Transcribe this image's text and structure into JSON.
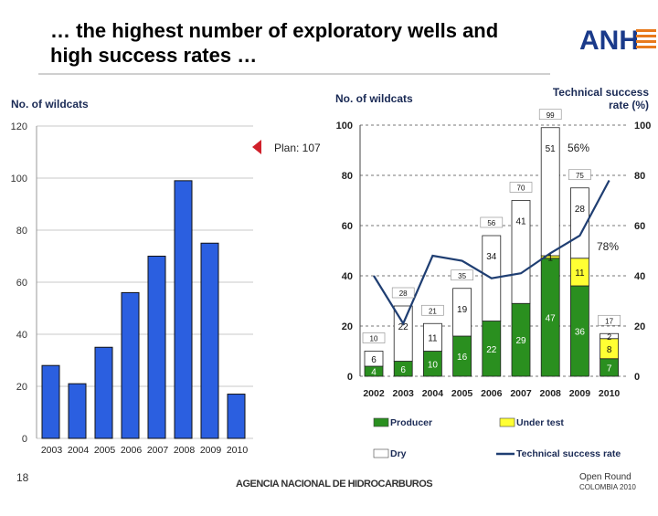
{
  "slide": {
    "title_line1": "… the highest number of exploratory wells and",
    "title_line2": "high success rates …",
    "logo_text": "ANH",
    "page_number": "18",
    "footer": "AGENCIA NACIONAL DE HIDROCARBUROS",
    "footer_logo_line1": "Open Round",
    "footer_logo_line2": "COLOMBIA 2010"
  },
  "colors": {
    "blue_bar": "#2b5fe0",
    "producer": "#2a8f1f",
    "under_test": "#ffff33",
    "dry": "#ffffff",
    "rate_line": "#1f3e72",
    "plan_marker": "#d0202a"
  },
  "chart_data": [
    {
      "type": "bar",
      "title": "",
      "ylabel": "No. of wildcats",
      "xlabel": "",
      "categories": [
        "2003",
        "2004",
        "2005",
        "2006",
        "2007",
        "2008",
        "2009",
        "2010"
      ],
      "values": [
        28,
        21,
        35,
        56,
        70,
        99,
        75,
        17
      ],
      "ylim": [
        0,
        120
      ],
      "yticks": [
        0,
        20,
        40,
        60,
        80,
        100,
        120
      ],
      "grid": true,
      "annotation": "Plan: 107"
    },
    {
      "type": "bar",
      "stacked": true,
      "ylabel_left": "No. of wildcats",
      "ylabel_right": "Technical success rate (%)",
      "categories": [
        "2002",
        "2003",
        "2004",
        "2005",
        "2006",
        "2007",
        "2008",
        "2009",
        "2010"
      ],
      "ylim": [
        0,
        100
      ],
      "yticks": [
        0,
        20,
        40,
        60,
        80,
        100
      ],
      "series": [
        {
          "name": "Producer",
          "values": [
            4,
            6,
            10,
            16,
            22,
            29,
            47,
            36,
            7
          ]
        },
        {
          "name": "Under test",
          "values": [
            0,
            0,
            0,
            0,
            0,
            0,
            1,
            11,
            8
          ]
        },
        {
          "name": "Dry",
          "values": [
            6,
            22,
            11,
            19,
            34,
            41,
            51,
            28,
            2
          ]
        },
        {
          "name": "Technical success rate",
          "type": "line",
          "values": [
            40,
            21,
            48,
            46,
            39,
            41,
            49,
            56,
            78
          ]
        }
      ],
      "totals": [
        10,
        28,
        21,
        35,
        56,
        70,
        99,
        75,
        17
      ],
      "annotations": [
        "56%",
        "78%"
      ],
      "legend": [
        "Producer",
        "Under test",
        "Dry",
        "Technical success rate"
      ],
      "legend_position": "bottom"
    }
  ]
}
